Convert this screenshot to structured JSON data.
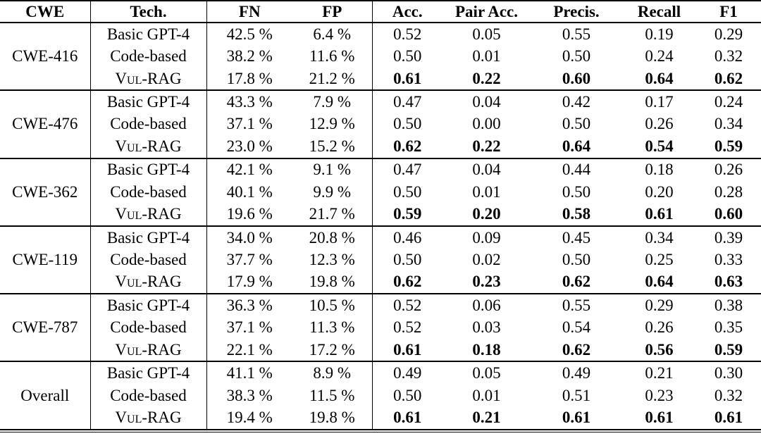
{
  "colors": {
    "text": "#000000",
    "background": "#ffffff",
    "rule": "#000000"
  },
  "table": {
    "columns": [
      "CWE",
      "Tech.",
      "FN",
      "FP",
      "Acc.",
      "Pair Acc.",
      "Precis.",
      "Recall",
      "F1"
    ],
    "groups": [
      {
        "cwe": "CWE-416",
        "rows": [
          {
            "tech": "Basic GPT-4",
            "fn": "42.5 %",
            "fp": "6.4 %",
            "acc": "0.52",
            "pair_acc": "0.05",
            "precision": "0.55",
            "recall": "0.19",
            "f1": "0.29",
            "highlight": false
          },
          {
            "tech": "Code-based",
            "fn": "38.2 %",
            "fp": "11.6 %",
            "acc": "0.50",
            "pair_acc": "0.01",
            "precision": "0.50",
            "recall": "0.24",
            "f1": "0.32",
            "highlight": false
          },
          {
            "tech": "Vul-RAG",
            "fn": "17.8 %",
            "fp": "21.2 %",
            "acc": "0.61",
            "pair_acc": "0.22",
            "precision": "0.60",
            "recall": "0.64",
            "f1": "0.62",
            "highlight": true
          }
        ]
      },
      {
        "cwe": "CWE-476",
        "rows": [
          {
            "tech": "Basic GPT-4",
            "fn": "43.3 %",
            "fp": "7.9 %",
            "acc": "0.47",
            "pair_acc": "0.04",
            "precision": "0.42",
            "recall": "0.17",
            "f1": "0.24",
            "highlight": false
          },
          {
            "tech": "Code-based",
            "fn": "37.1 %",
            "fp": "12.9 %",
            "acc": "0.50",
            "pair_acc": "0.00",
            "precision": "0.50",
            "recall": "0.26",
            "f1": "0.34",
            "highlight": false
          },
          {
            "tech": "Vul-RAG",
            "fn": "23.0 %",
            "fp": "15.2 %",
            "acc": "0.62",
            "pair_acc": "0.22",
            "precision": "0.64",
            "recall": "0.54",
            "f1": "0.59",
            "highlight": true
          }
        ]
      },
      {
        "cwe": "CWE-362",
        "rows": [
          {
            "tech": "Basic GPT-4",
            "fn": "42.1 %",
            "fp": "9.1 %",
            "acc": "0.47",
            "pair_acc": "0.04",
            "precision": "0.44",
            "recall": "0.18",
            "f1": "0.26",
            "highlight": false
          },
          {
            "tech": "Code-based",
            "fn": "40.1 %",
            "fp": "9.9 %",
            "acc": "0.50",
            "pair_acc": "0.01",
            "precision": "0.50",
            "recall": "0.20",
            "f1": "0.28",
            "highlight": false
          },
          {
            "tech": "Vul-RAG",
            "fn": "19.6 %",
            "fp": "21.7 %",
            "acc": "0.59",
            "pair_acc": "0.20",
            "precision": "0.58",
            "recall": "0.61",
            "f1": "0.60",
            "highlight": true
          }
        ]
      },
      {
        "cwe": "CWE-119",
        "rows": [
          {
            "tech": "Basic GPT-4",
            "fn": "34.0 %",
            "fp": "20.8 %",
            "acc": "0.46",
            "pair_acc": "0.09",
            "precision": "0.45",
            "recall": "0.34",
            "f1": "0.39",
            "highlight": false
          },
          {
            "tech": "Code-based",
            "fn": "37.7 %",
            "fp": "12.3 %",
            "acc": "0.50",
            "pair_acc": "0.02",
            "precision": "0.50",
            "recall": "0.25",
            "f1": "0.33",
            "highlight": false
          },
          {
            "tech": "Vul-RAG",
            "fn": "17.9 %",
            "fp": "19.8 %",
            "acc": "0.62",
            "pair_acc": "0.23",
            "precision": "0.62",
            "recall": "0.64",
            "f1": "0.63",
            "highlight": true
          }
        ]
      },
      {
        "cwe": "CWE-787",
        "rows": [
          {
            "tech": "Basic GPT-4",
            "fn": "36.3 %",
            "fp": "10.5 %",
            "acc": "0.52",
            "pair_acc": "0.06",
            "precision": "0.55",
            "recall": "0.29",
            "f1": "0.38",
            "highlight": false
          },
          {
            "tech": "Code-based",
            "fn": "37.1 %",
            "fp": "11.3 %",
            "acc": "0.52",
            "pair_acc": "0.03",
            "precision": "0.54",
            "recall": "0.26",
            "f1": "0.35",
            "highlight": false
          },
          {
            "tech": "Vul-RAG",
            "fn": "22.1 %",
            "fp": "17.2 %",
            "acc": "0.61",
            "pair_acc": "0.18",
            "precision": "0.62",
            "recall": "0.56",
            "f1": "0.59",
            "highlight": true
          }
        ]
      },
      {
        "cwe": "Overall",
        "rows": [
          {
            "tech": "Basic GPT-4",
            "fn": "41.1 %",
            "fp": "8.9 %",
            "acc": "0.49",
            "pair_acc": "0.05",
            "precision": "0.49",
            "recall": "0.21",
            "f1": "0.30",
            "highlight": false
          },
          {
            "tech": "Code-based",
            "fn": "38.3 %",
            "fp": "11.5 %",
            "acc": "0.50",
            "pair_acc": "0.01",
            "precision": "0.51",
            "recall": "0.23",
            "f1": "0.32",
            "highlight": false
          },
          {
            "tech": "Vul-RAG",
            "fn": "19.4 %",
            "fp": "19.8 %",
            "acc": "0.61",
            "pair_acc": "0.21",
            "precision": "0.61",
            "recall": "0.61",
            "f1": "0.61",
            "highlight": true
          }
        ]
      }
    ]
  }
}
